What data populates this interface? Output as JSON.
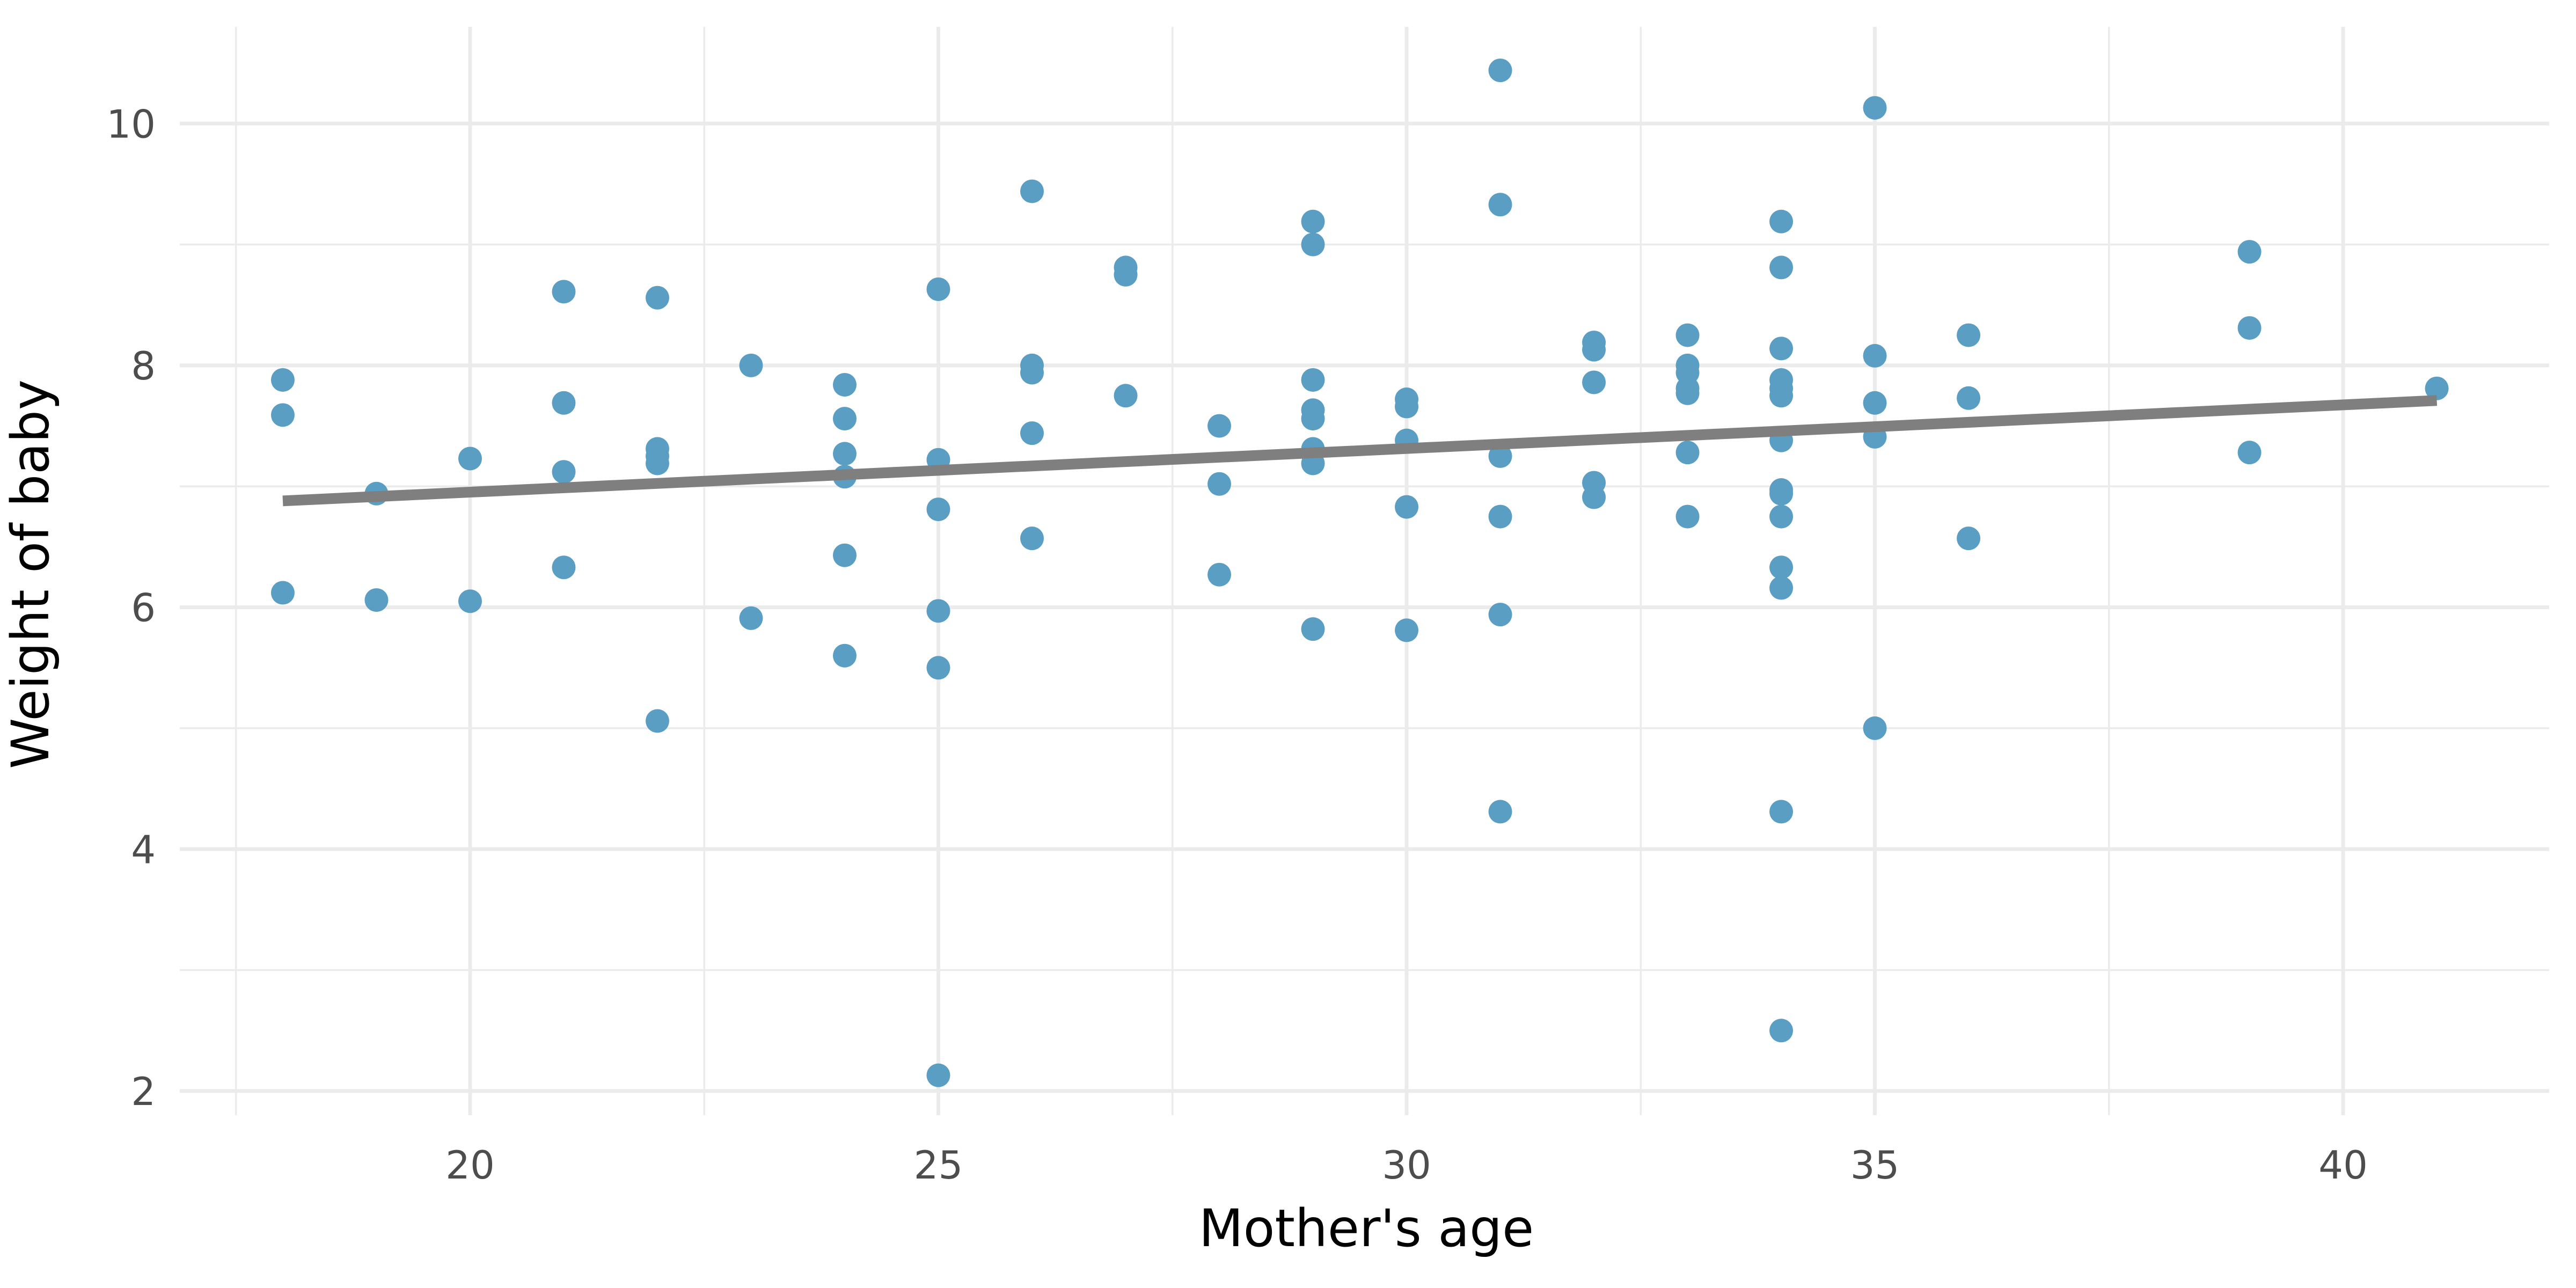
{
  "chart_data": {
    "type": "scatter",
    "title": "",
    "xlabel": "Mother's age",
    "ylabel": "Weight of baby",
    "xlim": [
      16.9,
      42.2
    ],
    "ylim": [
      1.8,
      10.8
    ],
    "x_ticks": [
      20,
      25,
      30,
      35,
      40
    ],
    "y_ticks": [
      2,
      4,
      6,
      8,
      10
    ],
    "x_tick_labels": [
      "20",
      "25",
      "30",
      "35",
      "40"
    ],
    "y_tick_labels": [
      "2",
      "4",
      "6",
      "8",
      "10"
    ],
    "grid": true,
    "point_color": "#5a9ec3",
    "line_color": "#7f7f7f",
    "points": [
      [
        18,
        7.88
      ],
      [
        18,
        7.59
      ],
      [
        18,
        6.12
      ],
      [
        19,
        6.94
      ],
      [
        19,
        6.06
      ],
      [
        20,
        7.23
      ],
      [
        20,
        6.05
      ],
      [
        21,
        8.61
      ],
      [
        21,
        7.69
      ],
      [
        21,
        7.12
      ],
      [
        21,
        6.33
      ],
      [
        22,
        8.56
      ],
      [
        22,
        7.31
      ],
      [
        22,
        7.25
      ],
      [
        22,
        7.19
      ],
      [
        22,
        5.06
      ],
      [
        23,
        8.0
      ],
      [
        23,
        5.91
      ],
      [
        24,
        7.84
      ],
      [
        24,
        7.56
      ],
      [
        24,
        7.27
      ],
      [
        24,
        7.08
      ],
      [
        24,
        6.43
      ],
      [
        24,
        5.6
      ],
      [
        25,
        8.63
      ],
      [
        25,
        7.22
      ],
      [
        25,
        6.81
      ],
      [
        25,
        5.97
      ],
      [
        25,
        5.5
      ],
      [
        25,
        2.13
      ],
      [
        26,
        9.44
      ],
      [
        26,
        8.0
      ],
      [
        26,
        7.94
      ],
      [
        26,
        7.44
      ],
      [
        26,
        6.57
      ],
      [
        27,
        8.81
      ],
      [
        27,
        8.75
      ],
      [
        27,
        7.75
      ],
      [
        28,
        7.5
      ],
      [
        28,
        7.02
      ],
      [
        28,
        6.27
      ],
      [
        29,
        9.19
      ],
      [
        29,
        9.0
      ],
      [
        29,
        7.88
      ],
      [
        29,
        7.63
      ],
      [
        29,
        7.56
      ],
      [
        29,
        7.31
      ],
      [
        29,
        7.19
      ],
      [
        29,
        5.82
      ],
      [
        30,
        7.72
      ],
      [
        30,
        7.66
      ],
      [
        30,
        7.38
      ],
      [
        30,
        6.83
      ],
      [
        30,
        5.81
      ],
      [
        31,
        10.44
      ],
      [
        31,
        9.33
      ],
      [
        31,
        7.25
      ],
      [
        31,
        6.75
      ],
      [
        31,
        5.94
      ],
      [
        31,
        4.31
      ],
      [
        32,
        8.19
      ],
      [
        32,
        8.13
      ],
      [
        32,
        7.86
      ],
      [
        32,
        7.03
      ],
      [
        32,
        6.91
      ],
      [
        33,
        8.25
      ],
      [
        33,
        8.0
      ],
      [
        33,
        7.94
      ],
      [
        33,
        7.81
      ],
      [
        33,
        7.77
      ],
      [
        33,
        7.28
      ],
      [
        33,
        6.75
      ],
      [
        34,
        9.19
      ],
      [
        34,
        8.81
      ],
      [
        34,
        8.14
      ],
      [
        34,
        7.88
      ],
      [
        34,
        7.81
      ],
      [
        34,
        7.75
      ],
      [
        34,
        7.38
      ],
      [
        34,
        6.97
      ],
      [
        34,
        6.94
      ],
      [
        34,
        6.75
      ],
      [
        34,
        6.33
      ],
      [
        34,
        6.16
      ],
      [
        34,
        4.31
      ],
      [
        34,
        2.5
      ],
      [
        35,
        10.13
      ],
      [
        35,
        8.08
      ],
      [
        35,
        7.69
      ],
      [
        35,
        7.41
      ],
      [
        35,
        5.0
      ],
      [
        36,
        8.25
      ],
      [
        36,
        7.73
      ],
      [
        36,
        6.57
      ],
      [
        39,
        8.94
      ],
      [
        39,
        8.31
      ],
      [
        39,
        7.28
      ],
      [
        41,
        7.81
      ]
    ],
    "trend_line": {
      "x": [
        18,
        41
      ],
      "y": [
        6.88,
        7.71
      ]
    }
  }
}
